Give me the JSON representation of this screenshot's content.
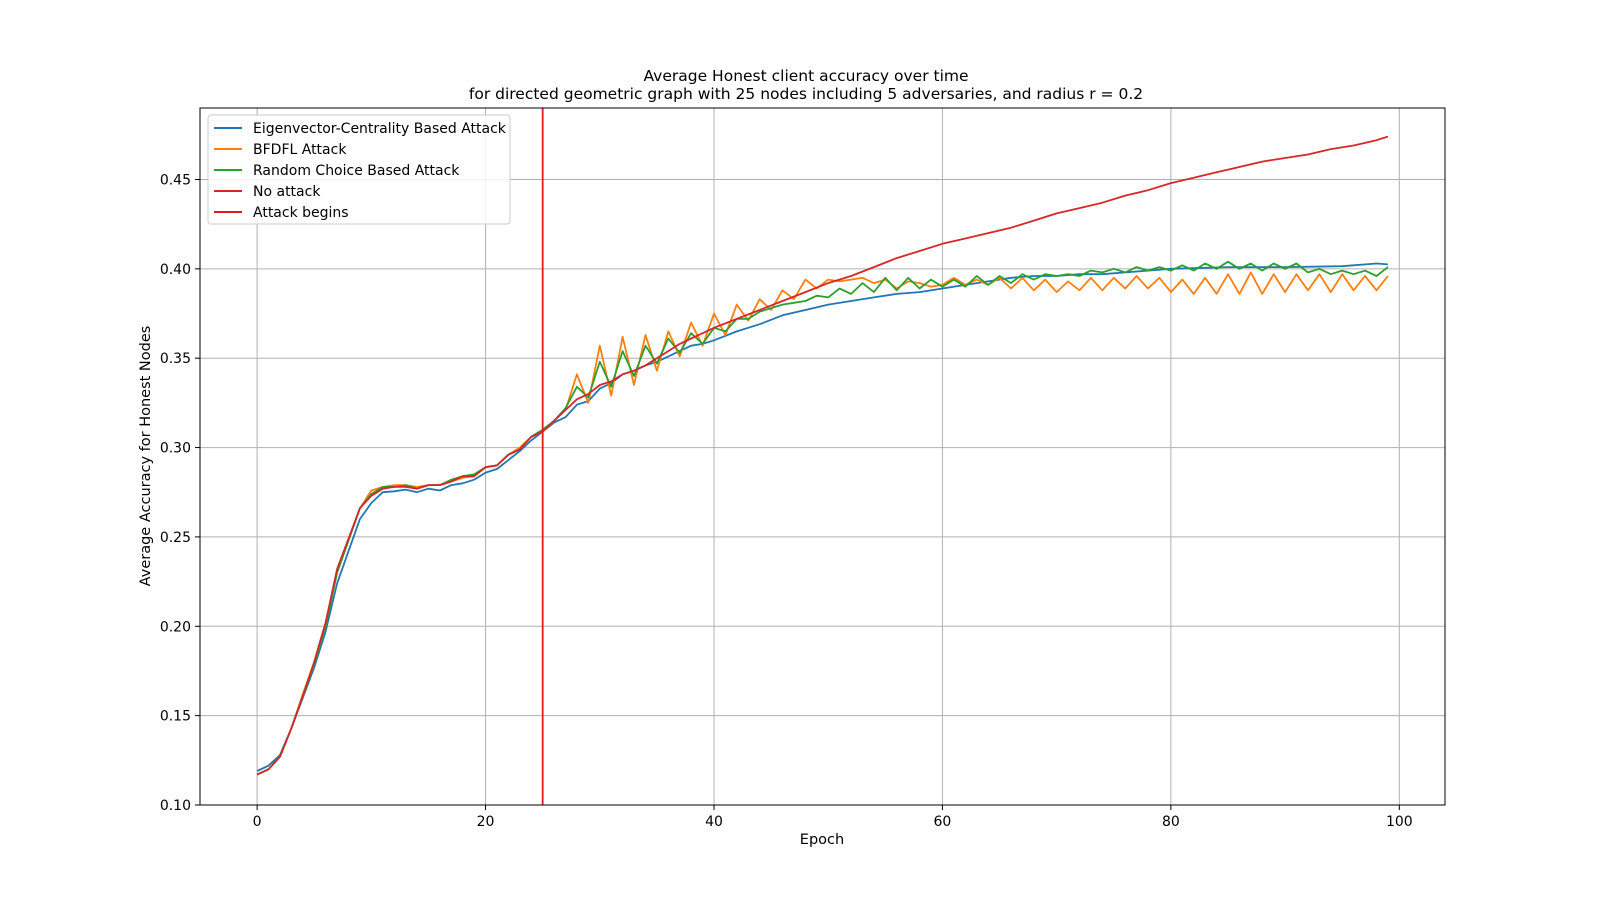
{
  "chart_data": {
    "type": "line",
    "title": "Average Honest client accuracy over time",
    "subtitle": "for directed geometric graph with 25 nodes including 5 adversaries, and radius r = 0.2",
    "xlabel": "Epoch",
    "ylabel": "Average Accuracy for Honest Nodes",
    "xlim": [
      -5,
      104
    ],
    "ylim": [
      0.1,
      0.49
    ],
    "xticks": [
      0,
      20,
      40,
      60,
      80,
      100
    ],
    "yticks": [
      0.1,
      0.15,
      0.2,
      0.25,
      0.3,
      0.35,
      0.4,
      0.45
    ],
    "xtick_labels": [
      "0",
      "20",
      "40",
      "60",
      "80",
      "100"
    ],
    "ytick_labels": [
      "0.10",
      "0.15",
      "0.20",
      "0.25",
      "0.30",
      "0.35",
      "0.40",
      "0.45"
    ],
    "grid": true,
    "legend_position": "upper-left",
    "attack_begins_epoch": 25,
    "anchors": {
      "Eigenvector-Centrality Based Attack": [
        [
          0,
          0.119
        ],
        [
          1,
          0.122
        ],
        [
          2,
          0.128
        ],
        [
          3,
          0.143
        ],
        [
          4,
          0.16
        ],
        [
          5,
          0.177
        ],
        [
          6,
          0.197
        ],
        [
          7,
          0.224
        ],
        [
          8,
          0.242
        ],
        [
          9,
          0.26
        ],
        [
          10,
          0.269
        ],
        [
          11,
          0.275
        ],
        [
          12,
          0.2755
        ],
        [
          13,
          0.2765
        ],
        [
          14,
          0.275
        ],
        [
          15,
          0.277
        ],
        [
          16,
          0.276
        ],
        [
          17,
          0.279
        ],
        [
          18,
          0.28
        ],
        [
          19,
          0.282
        ],
        [
          20,
          0.286
        ],
        [
          21,
          0.288
        ],
        [
          22,
          0.293
        ],
        [
          23,
          0.298
        ],
        [
          24,
          0.304
        ],
        [
          25,
          0.309
        ],
        [
          26,
          0.314
        ],
        [
          27,
          0.317
        ],
        [
          28,
          0.324
        ],
        [
          29,
          0.326
        ],
        [
          30,
          0.333
        ],
        [
          31,
          0.336
        ],
        [
          32,
          0.341
        ],
        [
          33,
          0.343
        ],
        [
          34,
          0.346
        ],
        [
          35,
          0.348
        ],
        [
          36,
          0.351
        ],
        [
          37,
          0.354
        ],
        [
          38,
          0.357
        ],
        [
          39,
          0.358
        ],
        [
          40,
          0.36
        ],
        [
          42,
          0.365
        ],
        [
          44,
          0.369
        ],
        [
          46,
          0.374
        ],
        [
          48,
          0.377
        ],
        [
          50,
          0.38
        ],
        [
          52,
          0.382
        ],
        [
          54,
          0.384
        ],
        [
          56,
          0.386
        ],
        [
          58,
          0.387
        ],
        [
          60,
          0.389
        ],
        [
          62,
          0.391
        ],
        [
          64,
          0.393
        ],
        [
          66,
          0.395
        ],
        [
          68,
          0.396
        ],
        [
          70,
          0.396
        ],
        [
          72,
          0.397
        ],
        [
          74,
          0.397
        ],
        [
          76,
          0.398
        ],
        [
          78,
          0.399
        ],
        [
          80,
          0.4
        ],
        [
          85,
          0.401
        ],
        [
          90,
          0.401
        ],
        [
          95,
          0.4015
        ],
        [
          98,
          0.403
        ],
        [
          99,
          0.4025
        ]
      ],
      "BFDFL Attack": [
        [
          0,
          0.117
        ],
        [
          1,
          0.12
        ],
        [
          2,
          0.127
        ],
        [
          3,
          0.143
        ],
        [
          4,
          0.162
        ],
        [
          5,
          0.18
        ],
        [
          6,
          0.202
        ],
        [
          7,
          0.23
        ],
        [
          8,
          0.248
        ],
        [
          9,
          0.266
        ],
        [
          10,
          0.276
        ],
        [
          11,
          0.278
        ],
        [
          12,
          0.279
        ],
        [
          13,
          0.279
        ],
        [
          14,
          0.278
        ],
        [
          15,
          0.279
        ],
        [
          16,
          0.279
        ],
        [
          17,
          0.281
        ],
        [
          18,
          0.283
        ],
        [
          19,
          0.284
        ],
        [
          20,
          0.289
        ],
        [
          21,
          0.29
        ],
        [
          22,
          0.296
        ],
        [
          23,
          0.3
        ],
        [
          24,
          0.306
        ],
        [
          25,
          0.309
        ],
        [
          26,
          0.315
        ],
        [
          27,
          0.321
        ],
        [
          28,
          0.341
        ],
        [
          29,
          0.325
        ],
        [
          30,
          0.357
        ],
        [
          31,
          0.329
        ],
        [
          32,
          0.362
        ],
        [
          33,
          0.335
        ],
        [
          34,
          0.363
        ],
        [
          35,
          0.343
        ],
        [
          36,
          0.365
        ],
        [
          37,
          0.351
        ],
        [
          38,
          0.37
        ],
        [
          39,
          0.357
        ],
        [
          40,
          0.375
        ],
        [
          41,
          0.363
        ],
        [
          42,
          0.38
        ],
        [
          43,
          0.371
        ],
        [
          44,
          0.383
        ],
        [
          45,
          0.377
        ],
        [
          46,
          0.388
        ],
        [
          47,
          0.383
        ],
        [
          48,
          0.394
        ],
        [
          49,
          0.389
        ],
        [
          50,
          0.394
        ],
        [
          51,
          0.393
        ],
        [
          52,
          0.394
        ],
        [
          53,
          0.395
        ],
        [
          54,
          0.392
        ],
        [
          55,
          0.394
        ],
        [
          56,
          0.389
        ],
        [
          57,
          0.393
        ],
        [
          58,
          0.392
        ],
        [
          59,
          0.39
        ],
        [
          60,
          0.391
        ],
        [
          61,
          0.395
        ],
        [
          62,
          0.391
        ],
        [
          63,
          0.394
        ],
        [
          64,
          0.391
        ],
        [
          65,
          0.395
        ],
        [
          66,
          0.389
        ],
        [
          67,
          0.395
        ],
        [
          68,
          0.388
        ],
        [
          69,
          0.394
        ],
        [
          70,
          0.387
        ],
        [
          71,
          0.393
        ],
        [
          72,
          0.388
        ],
        [
          73,
          0.395
        ],
        [
          74,
          0.388
        ],
        [
          75,
          0.395
        ],
        [
          76,
          0.389
        ],
        [
          77,
          0.396
        ],
        [
          78,
          0.389
        ],
        [
          79,
          0.395
        ],
        [
          80,
          0.387
        ],
        [
          81,
          0.394
        ],
        [
          82,
          0.386
        ],
        [
          83,
          0.395
        ],
        [
          84,
          0.386
        ],
        [
          85,
          0.397
        ],
        [
          86,
          0.386
        ],
        [
          87,
          0.398
        ],
        [
          88,
          0.386
        ],
        [
          89,
          0.397
        ],
        [
          90,
          0.387
        ],
        [
          91,
          0.397
        ],
        [
          92,
          0.388
        ],
        [
          93,
          0.397
        ],
        [
          94,
          0.387
        ],
        [
          95,
          0.397
        ],
        [
          96,
          0.388
        ],
        [
          97,
          0.396
        ],
        [
          98,
          0.388
        ],
        [
          99,
          0.396
        ]
      ],
      "Random Choice Based Attack": [
        [
          0,
          0.117
        ],
        [
          1,
          0.12
        ],
        [
          2,
          0.127
        ],
        [
          3,
          0.143
        ],
        [
          4,
          0.161
        ],
        [
          5,
          0.179
        ],
        [
          6,
          0.2
        ],
        [
          7,
          0.23
        ],
        [
          8,
          0.248
        ],
        [
          9,
          0.266
        ],
        [
          10,
          0.274
        ],
        [
          11,
          0.278
        ],
        [
          12,
          0.278
        ],
        [
          13,
          0.279
        ],
        [
          14,
          0.277
        ],
        [
          15,
          0.279
        ],
        [
          16,
          0.279
        ],
        [
          17,
          0.282
        ],
        [
          18,
          0.284
        ],
        [
          19,
          0.285
        ],
        [
          20,
          0.289
        ],
        [
          21,
          0.29
        ],
        [
          22,
          0.296
        ],
        [
          23,
          0.299
        ],
        [
          24,
          0.306
        ],
        [
          25,
          0.31
        ],
        [
          26,
          0.315
        ],
        [
          27,
          0.322
        ],
        [
          28,
          0.334
        ],
        [
          29,
          0.328
        ],
        [
          30,
          0.348
        ],
        [
          31,
          0.334
        ],
        [
          32,
          0.354
        ],
        [
          33,
          0.34
        ],
        [
          34,
          0.357
        ],
        [
          35,
          0.347
        ],
        [
          36,
          0.361
        ],
        [
          37,
          0.353
        ],
        [
          38,
          0.364
        ],
        [
          39,
          0.358
        ],
        [
          40,
          0.367
        ],
        [
          41,
          0.365
        ],
        [
          42,
          0.372
        ],
        [
          43,
          0.372
        ],
        [
          44,
          0.376
        ],
        [
          45,
          0.378
        ],
        [
          46,
          0.38
        ],
        [
          47,
          0.381
        ],
        [
          48,
          0.382
        ],
        [
          49,
          0.385
        ],
        [
          50,
          0.384
        ],
        [
          51,
          0.389
        ],
        [
          52,
          0.386
        ],
        [
          53,
          0.392
        ],
        [
          54,
          0.387
        ],
        [
          55,
          0.395
        ],
        [
          56,
          0.388
        ],
        [
          57,
          0.395
        ],
        [
          58,
          0.389
        ],
        [
          59,
          0.394
        ],
        [
          60,
          0.39
        ],
        [
          61,
          0.394
        ],
        [
          62,
          0.39
        ],
        [
          63,
          0.396
        ],
        [
          64,
          0.391
        ],
        [
          65,
          0.396
        ],
        [
          66,
          0.392
        ],
        [
          67,
          0.397
        ],
        [
          68,
          0.394
        ],
        [
          69,
          0.397
        ],
        [
          70,
          0.396
        ],
        [
          71,
          0.397
        ],
        [
          72,
          0.396
        ],
        [
          73,
          0.399
        ],
        [
          74,
          0.398
        ],
        [
          75,
          0.4
        ],
        [
          76,
          0.398
        ],
        [
          77,
          0.401
        ],
        [
          78,
          0.399
        ],
        [
          79,
          0.401
        ],
        [
          80,
          0.399
        ],
        [
          81,
          0.402
        ],
        [
          82,
          0.399
        ],
        [
          83,
          0.403
        ],
        [
          84,
          0.4
        ],
        [
          85,
          0.404
        ],
        [
          86,
          0.4
        ],
        [
          87,
          0.403
        ],
        [
          88,
          0.399
        ],
        [
          89,
          0.403
        ],
        [
          90,
          0.4
        ],
        [
          91,
          0.403
        ],
        [
          92,
          0.398
        ],
        [
          93,
          0.4
        ],
        [
          94,
          0.397
        ],
        [
          95,
          0.399
        ],
        [
          96,
          0.397
        ],
        [
          97,
          0.399
        ],
        [
          98,
          0.396
        ],
        [
          99,
          0.401
        ]
      ],
      "No attack": [
        [
          0,
          0.117
        ],
        [
          1,
          0.12
        ],
        [
          2,
          0.127
        ],
        [
          3,
          0.143
        ],
        [
          4,
          0.161
        ],
        [
          5,
          0.18
        ],
        [
          6,
          0.202
        ],
        [
          7,
          0.232
        ],
        [
          8,
          0.249
        ],
        [
          9,
          0.266
        ],
        [
          10,
          0.273
        ],
        [
          11,
          0.277
        ],
        [
          12,
          0.278
        ],
        [
          13,
          0.278
        ],
        [
          14,
          0.277
        ],
        [
          15,
          0.279
        ],
        [
          16,
          0.279
        ],
        [
          17,
          0.281
        ],
        [
          18,
          0.284
        ],
        [
          19,
          0.284
        ],
        [
          20,
          0.289
        ],
        [
          21,
          0.29
        ],
        [
          22,
          0.296
        ],
        [
          23,
          0.299
        ],
        [
          24,
          0.306
        ],
        [
          25,
          0.309
        ],
        [
          26,
          0.315
        ],
        [
          27,
          0.321
        ],
        [
          28,
          0.327
        ],
        [
          29,
          0.33
        ],
        [
          30,
          0.335
        ],
        [
          31,
          0.337
        ],
        [
          32,
          0.341
        ],
        [
          33,
          0.343
        ],
        [
          34,
          0.346
        ],
        [
          35,
          0.35
        ],
        [
          36,
          0.354
        ],
        [
          37,
          0.358
        ],
        [
          38,
          0.361
        ],
        [
          39,
          0.364
        ],
        [
          40,
          0.367
        ],
        [
          42,
          0.372
        ],
        [
          44,
          0.377
        ],
        [
          46,
          0.382
        ],
        [
          48,
          0.387
        ],
        [
          50,
          0.392
        ],
        [
          52,
          0.396
        ],
        [
          54,
          0.401
        ],
        [
          56,
          0.406
        ],
        [
          58,
          0.41
        ],
        [
          60,
          0.414
        ],
        [
          62,
          0.417
        ],
        [
          64,
          0.42
        ],
        [
          66,
          0.423
        ],
        [
          68,
          0.427
        ],
        [
          70,
          0.431
        ],
        [
          72,
          0.434
        ],
        [
          74,
          0.437
        ],
        [
          76,
          0.441
        ],
        [
          78,
          0.444
        ],
        [
          80,
          0.448
        ],
        [
          82,
          0.451
        ],
        [
          84,
          0.454
        ],
        [
          86,
          0.457
        ],
        [
          88,
          0.46
        ],
        [
          90,
          0.462
        ],
        [
          92,
          0.464
        ],
        [
          94,
          0.467
        ],
        [
          96,
          0.469
        ],
        [
          98,
          0.472
        ],
        [
          99,
          0.474
        ]
      ]
    },
    "series": [
      {
        "name": "Eigenvector-Centrality Based Attack",
        "color": "#1f77b4"
      },
      {
        "name": "BFDFL Attack",
        "color": "#ff7f0e"
      },
      {
        "name": "Random Choice Based Attack",
        "color": "#2ca02c"
      },
      {
        "name": "No attack",
        "color": "#d62728"
      }
    ],
    "vline": {
      "name": "Attack begins",
      "x": 25,
      "color": "#e11a1a"
    }
  }
}
